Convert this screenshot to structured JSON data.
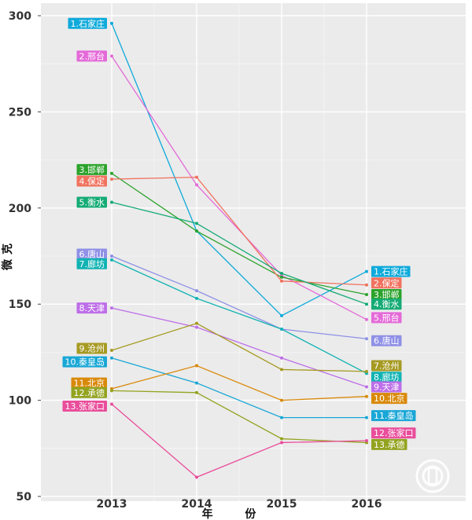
{
  "chart_data": {
    "type": "line",
    "xlabel": "年 份",
    "ylabel": "微克",
    "x": [
      "2013",
      "2014",
      "2015",
      "2016"
    ],
    "ylim": [
      48,
      305
    ],
    "yticks": [
      50,
      100,
      150,
      200,
      250,
      300
    ],
    "grid": true,
    "background": "#ebebeb",
    "series": [
      {
        "name": "1.石家庄",
        "color": "#0eaadb",
        "values": [
          296,
          188,
          144,
          167
        ]
      },
      {
        "name": "2.邢台",
        "color": "#e46ad8",
        "values": [
          279,
          212,
          165,
          142
        ]
      },
      {
        "name": "3.邯郸",
        "color": "#2ba32b",
        "values": [
          218,
          188,
          164,
          155
        ]
      },
      {
        "name": "4.保定",
        "color": "#f0725f",
        "values": [
          215,
          216,
          162,
          160
        ]
      },
      {
        "name": "5.衡水",
        "color": "#15ab75",
        "values": [
          203,
          192,
          166,
          150
        ]
      },
      {
        "name": "6.唐山",
        "color": "#8f90e6",
        "values": [
          175,
          157,
          137,
          132
        ]
      },
      {
        "name": "7.廊坊",
        "color": "#11b3b3",
        "values": [
          173,
          153,
          137,
          114
        ]
      },
      {
        "name": "8.天津",
        "color": "#bd6ee8",
        "values": [
          148,
          138,
          122,
          107
        ]
      },
      {
        "name": "9.沧州",
        "color": "#a69a22",
        "values": [
          126,
          140,
          116,
          115
        ]
      },
      {
        "name": "10.秦皇岛",
        "color": "#19a7d6",
        "values": [
          122,
          109,
          91,
          91
        ]
      },
      {
        "name": "11.北京",
        "color": "#d9890a",
        "values": [
          106,
          118,
          100,
          102
        ]
      },
      {
        "name": "12.承德",
        "color": "#93a31f",
        "values": [
          105,
          104,
          80,
          78
        ]
      },
      {
        "name": "13.张家口",
        "color": "#e94e9b",
        "values": [
          98,
          60,
          78,
          79
        ]
      }
    ],
    "labels_2013": [
      {
        "series": 0,
        "text": "1.石家庄",
        "value": 296
      },
      {
        "series": 1,
        "text": "2.邢台",
        "value": 279
      },
      {
        "series": 2,
        "text": "3.邯郸",
        "value": 220
      },
      {
        "series": 3,
        "text": "4.保定",
        "value": 214
      },
      {
        "series": 4,
        "text": "5.衡水",
        "value": 203
      },
      {
        "series": 5,
        "text": "6.唐山",
        "value": 176
      },
      {
        "series": 6,
        "text": "7.廊坊",
        "value": 171
      },
      {
        "series": 7,
        "text": "8.天津",
        "value": 148
      },
      {
        "series": 8,
        "text": "9.沧州",
        "value": 127
      },
      {
        "series": 9,
        "text": "10.秦皇岛",
        "value": 120
      },
      {
        "series": 10,
        "text": "11.北京",
        "value": 109
      },
      {
        "series": 11,
        "text": "12.承德",
        "value": 104
      },
      {
        "series": 12,
        "text": "13.张家口",
        "value": 97
      }
    ],
    "labels_2016": [
      {
        "series": 0,
        "text": "1.石家庄",
        "value": 167
      },
      {
        "series": 3,
        "text": "2.保定",
        "value": 161
      },
      {
        "series": 2,
        "text": "3.邯郸",
        "value": 155
      },
      {
        "series": 4,
        "text": "4.衡水",
        "value": 150
      },
      {
        "series": 1,
        "text": "5.邢台",
        "value": 143
      },
      {
        "series": 5,
        "text": "6.唐山",
        "value": 131
      },
      {
        "series": 8,
        "text": "7.沧州",
        "value": 118
      },
      {
        "series": 6,
        "text": "8.廊坊",
        "value": 112
      },
      {
        "series": 7,
        "text": "9.天津",
        "value": 107
      },
      {
        "series": 10,
        "text": "10.北京",
        "value": 101
      },
      {
        "series": 9,
        "text": "11.秦皇岛",
        "value": 92
      },
      {
        "series": 12,
        "text": "12.张家口",
        "value": 83
      },
      {
        "series": 11,
        "text": "13.承德",
        "value": 77
      }
    ]
  }
}
